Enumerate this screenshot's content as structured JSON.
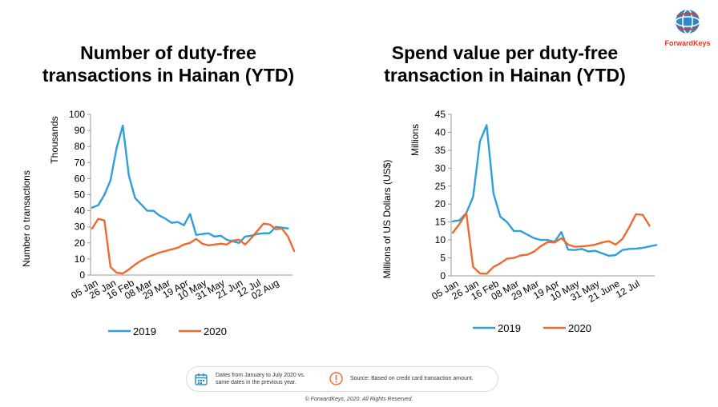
{
  "brand": {
    "name": "ForwardKeys"
  },
  "colors": {
    "series_2019": "#2e9fd8",
    "series_2020": "#ee6a2e",
    "axis": "#999999",
    "brand": "#d93a2b"
  },
  "chart_data": [
    {
      "type": "line",
      "title": "Number of duty-free transactions in Hainan (YTD)",
      "ylabel": "Number o transactions",
      "yunit": "Thousands",
      "ylim": [
        0,
        100
      ],
      "yticks": [
        "0",
        "10",
        "20",
        "30",
        "40",
        "50",
        "60",
        "70",
        "80",
        "90",
        "100"
      ],
      "xticks": [
        "05 Jan",
        "26 Jan",
        "16 Feb",
        "08 Mar",
        "29 Mar",
        "19 Apr",
        "10 May",
        "31 May",
        "21 Jun",
        "12 Jul",
        "02 Aug"
      ],
      "legend_position": "bottom",
      "series": [
        {
          "name": "2019",
          "values": [
            42,
            43.5,
            50,
            59,
            79,
            93,
            62,
            48,
            44,
            40,
            40,
            37,
            35,
            32.5,
            33,
            31,
            38,
            25,
            25.5,
            26,
            24,
            24.5,
            22,
            21,
            20,
            24,
            24.5,
            25.5,
            26,
            26,
            30,
            29.5,
            29
          ]
        },
        {
          "name": "2020",
          "values": [
            29,
            35,
            34,
            5,
            1.5,
            1,
            3.5,
            6.5,
            9,
            11,
            12.5,
            14,
            15,
            16,
            17,
            19,
            20,
            22.5,
            19.5,
            18.5,
            19,
            19.5,
            19,
            21.5,
            22,
            19,
            23,
            27.5,
            32,
            31.5,
            28.5,
            29,
            24,
            15
          ]
        }
      ]
    },
    {
      "type": "line",
      "title": "Spend value per duty-free transaction in Hainan (YTD)",
      "ylabel": "Millions of US Dollars (US$)",
      "yunit": "Millions",
      "ylim": [
        0,
        45
      ],
      "yticks": [
        "0",
        "5",
        "10",
        "15",
        "20",
        "25",
        "30",
        "35",
        "40",
        "45"
      ],
      "xticks": [
        "05 Jan",
        "26 Jan",
        "16 Feb",
        "08 Mar",
        "29 Mar",
        "19 Apr",
        "10 May",
        "31 May",
        "21 June",
        "12 Jul"
      ],
      "legend_position": "bottom",
      "series": [
        {
          "name": "2019",
          "values": [
            15.2,
            15.5,
            17.5,
            22,
            37.5,
            42,
            23,
            16.5,
            15,
            12.5,
            12.5,
            11.5,
            10.5,
            10,
            10,
            9.5,
            12.2,
            7.3,
            7.2,
            7.5,
            6.8,
            7,
            6.3,
            5.6,
            5.8,
            7.2,
            7.5,
            7.6,
            7.8,
            8.2,
            8.6
          ]
        },
        {
          "name": "2020",
          "values": [
            12,
            14.5,
            17.5,
            2.5,
            0.7,
            0.6,
            2.5,
            3.5,
            4.8,
            5,
            5.7,
            5.9,
            6.8,
            8.3,
            9.4,
            9.3,
            10.5,
            8.7,
            8.1,
            8.2,
            8.4,
            8.7,
            9.3,
            9.7,
            8.7,
            10.3,
            13.5,
            17.2,
            17,
            14
          ]
        }
      ]
    }
  ],
  "notes": {
    "dates_line1": "Dates from January to July 2020 vs.",
    "dates_line2": "same dates in the previous year.",
    "source": "Source: Based on credit card transaction amount."
  },
  "footer": {
    "copyright": "© ForwardKeys, 2020. All Rights Reserved."
  }
}
